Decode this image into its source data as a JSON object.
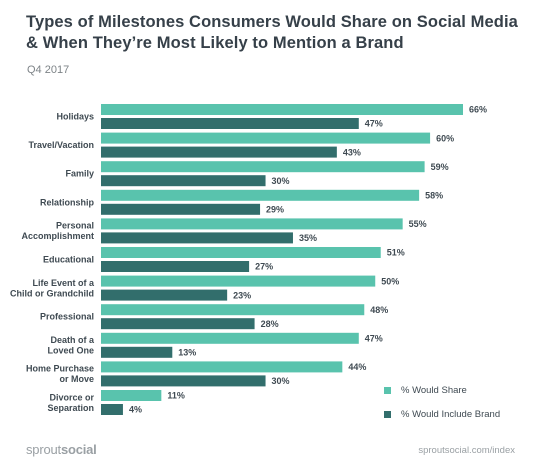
{
  "title": "Types of Milestones Consumers Would Share on Social Media & When They’re Most Likely to Mention a Brand",
  "subtitle": "Q4 2017",
  "colors": {
    "share": "#59c3ad",
    "brand": "#326e6c"
  },
  "legend": {
    "share": "% Would Share",
    "brand": "% Would Include Brand"
  },
  "footer": {
    "logo_light": "sprout",
    "logo_bold": "social",
    "url": "sproutsocial.com/index"
  },
  "chart_data": {
    "type": "bar",
    "orientation": "horizontal",
    "title": "Types of Milestones Consumers Would Share on Social Media & When They’re Most Likely to Mention a Brand",
    "subtitle": "Q4 2017",
    "value_format": "percent",
    "xlim": [
      0,
      66
    ],
    "grid": false,
    "legend_position": "bottom-right",
    "categories": [
      [
        "Holidays"
      ],
      [
        "Travel/Vacation"
      ],
      [
        "Family"
      ],
      [
        "Relationship"
      ],
      [
        "Personal",
        "Accomplishment"
      ],
      [
        "Educational"
      ],
      [
        "Life Event of a",
        "Child or Grandchild"
      ],
      [
        "Professional"
      ],
      [
        "Death of a",
        "Loved One"
      ],
      [
        "Home Purchase",
        "or Move"
      ],
      [
        "Divorce or",
        "Separation"
      ]
    ],
    "series": [
      {
        "name": "% Would Share",
        "values": [
          66,
          60,
          59,
          58,
          55,
          51,
          50,
          48,
          47,
          44,
          11
        ]
      },
      {
        "name": "% Would Include Brand",
        "values": [
          47,
          43,
          30,
          29,
          35,
          27,
          23,
          28,
          13,
          30,
          4
        ]
      }
    ]
  }
}
